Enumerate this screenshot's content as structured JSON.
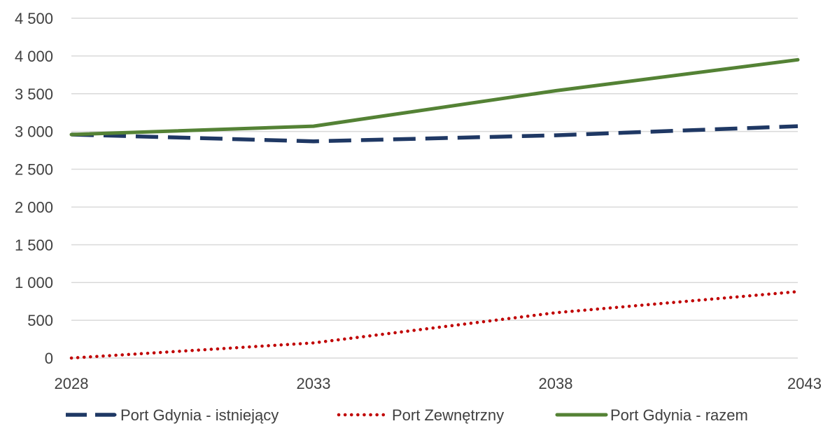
{
  "chart_data": {
    "type": "line",
    "title": "",
    "xlabel": "",
    "ylabel": "",
    "x": [
      2028,
      2033,
      2038,
      2043
    ],
    "x_tick_labels": [
      "2028",
      "2033",
      "2038",
      "2043"
    ],
    "ylim": [
      0,
      4500
    ],
    "y_ticks": [
      0,
      500,
      1000,
      1500,
      2000,
      2500,
      3000,
      3500,
      4000,
      4500
    ],
    "y_tick_labels": [
      "0",
      "500",
      "1 000",
      "1 500",
      "2 000",
      "2 500",
      "3 000",
      "3 500",
      "4 000",
      "4 500"
    ],
    "grid": true,
    "legend_position": "bottom",
    "series": [
      {
        "name": "Port Gdynia - istniejący",
        "values": [
          2960,
          2870,
          2950,
          3070
        ],
        "color": "#1f3864",
        "style": "dashed"
      },
      {
        "name": "Port Zewnętrzny",
        "values": [
          0,
          200,
          600,
          880
        ],
        "color": "#c00000",
        "style": "dotted"
      },
      {
        "name": "Port Gdynia - razem",
        "values": [
          2960,
          3070,
          3540,
          3950
        ],
        "color": "#548235",
        "style": "solid"
      }
    ]
  }
}
